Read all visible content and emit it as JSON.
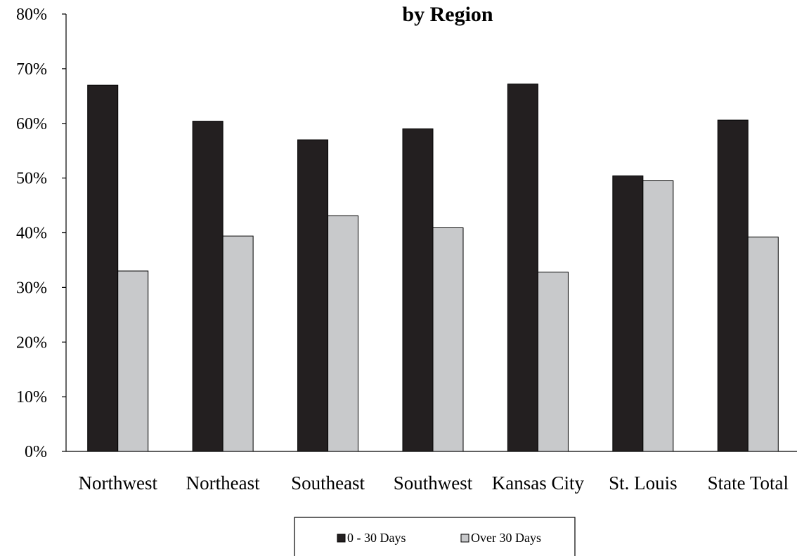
{
  "chart_data": {
    "type": "bar",
    "title": "by Region",
    "categories": [
      "Northwest",
      "Northeast",
      "Southeast",
      "Southwest",
      "Kansas City",
      "St. Louis",
      "State Total"
    ],
    "series": [
      {
        "name": "0 - 30 Days",
        "color": "#231f20",
        "values": [
          67.0,
          60.4,
          57.0,
          59.0,
          67.2,
          50.4,
          60.6
        ]
      },
      {
        "name": "Over 30 Days",
        "color": "#c8c9cb",
        "values": [
          33.0,
          39.4,
          43.1,
          40.9,
          32.8,
          49.5,
          39.2
        ]
      }
    ],
    "ylim": [
      0,
      80
    ],
    "yticks": [
      "0%",
      "10%",
      "20%",
      "30%",
      "40%",
      "50%",
      "60%",
      "70%",
      "80%"
    ],
    "legend_position": "bottom",
    "grid": false
  }
}
